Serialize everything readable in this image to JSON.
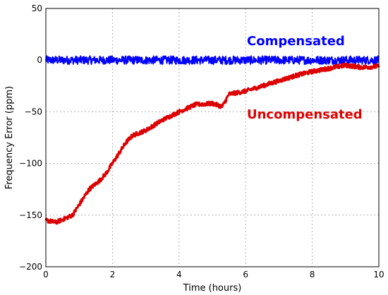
{
  "chart_data": {
    "type": "line",
    "title": "",
    "xlabel": "Time (hours)",
    "ylabel": "Frequency Error (ppm)",
    "xlim": [
      0,
      10
    ],
    "ylim": [
      -200,
      50
    ],
    "xticks": [
      0,
      2,
      4,
      6,
      8,
      10
    ],
    "yticks": [
      -200,
      -150,
      -100,
      -50,
      0,
      50
    ],
    "grid": true,
    "series": [
      {
        "name": "Compensated",
        "color": "#0000ff",
        "x": [
          0,
          1,
          2,
          3,
          4,
          5,
          6,
          7,
          8,
          9,
          10
        ],
        "y": [
          0,
          0,
          0,
          0,
          0,
          0,
          0,
          0,
          0,
          0,
          0
        ],
        "noise_amplitude": 4
      },
      {
        "name": "Uncompensated",
        "color": "#dd0000",
        "x": [
          0,
          0.3,
          0.6,
          0.8,
          1.0,
          1.3,
          1.6,
          1.8,
          2.0,
          2.2,
          2.4,
          2.6,
          3.0,
          3.5,
          4.0,
          4.5,
          5.0,
          5.3,
          5.5,
          6.0,
          6.5,
          7.0,
          7.5,
          8.0,
          8.5,
          9.0,
          9.5,
          10.0
        ],
        "y": [
          -155,
          -157,
          -153,
          -150,
          -140,
          -125,
          -117,
          -110,
          -100,
          -90,
          -80,
          -73,
          -68,
          -58,
          -50,
          -43,
          -42,
          -45,
          -33,
          -30,
          -25,
          -20,
          -15,
          -11,
          -8,
          -5,
          -7,
          -6
        ],
        "noise_amplitude": 2
      }
    ]
  }
}
